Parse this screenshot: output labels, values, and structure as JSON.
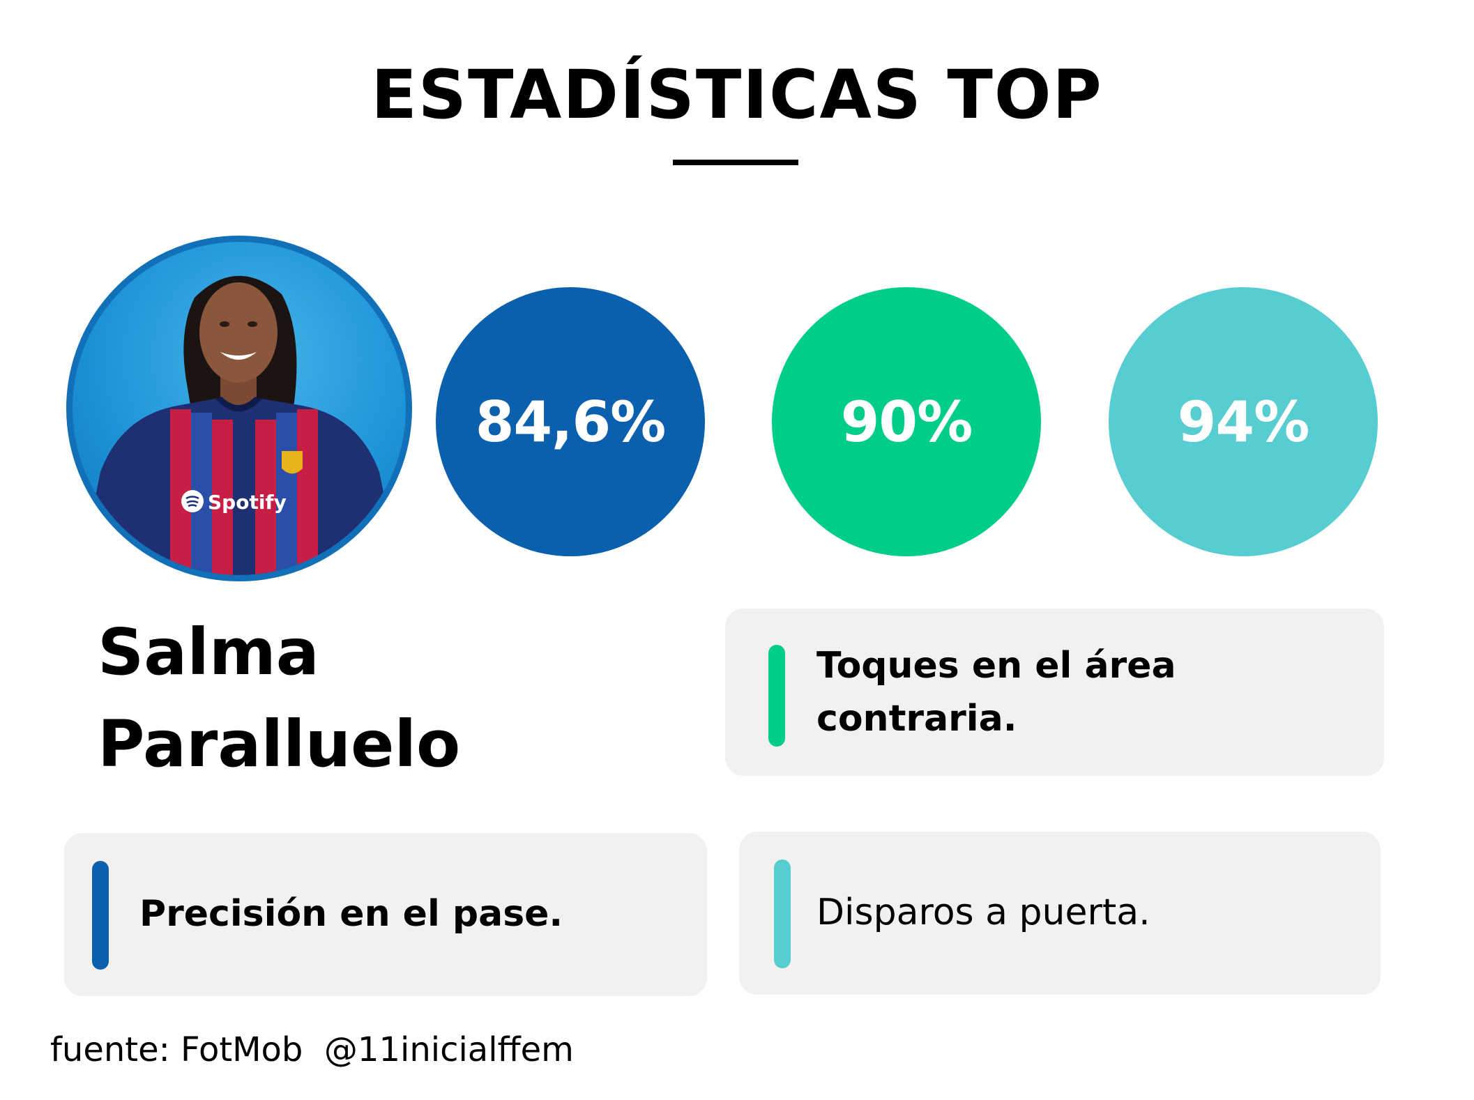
{
  "title": "ESTADÍSTICAS TOP",
  "player": {
    "first_name": "Salma",
    "last_name": "Paralluelo",
    "photo_icon": "player-photo"
  },
  "stats": [
    {
      "value": "84,6%",
      "color": "#0a60ad",
      "label": "Precisión en el pase."
    },
    {
      "value": "90%",
      "color": "#00cd8a",
      "label": "Toques en el área contraria."
    },
    {
      "value": "94%",
      "color": "#57cdd1",
      "label": "Disparos a puerta."
    }
  ],
  "shirt_sponsor": "Spotify",
  "source": "fuente: FotMob  @11inicialffem"
}
